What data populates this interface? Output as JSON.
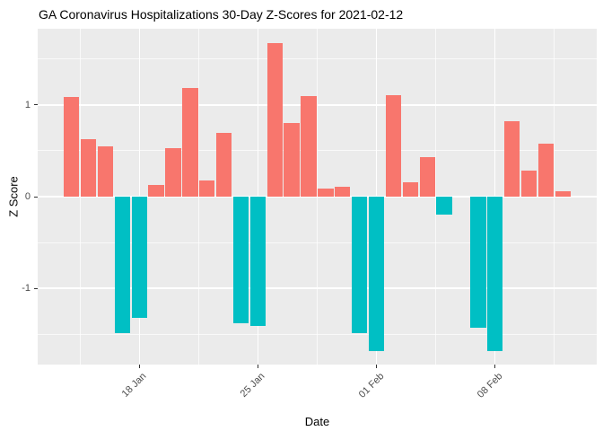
{
  "title": "GA Coronavirus Hospitalizations 30-Day Z-Scores for 2021-02-12",
  "colors": {
    "positive_bar": "#F8766D",
    "negative_bar": "#00BFC4",
    "panel_background": "#EBEBEB",
    "gridline": "#FFFFFF",
    "tick_text": "#4D4D4D",
    "tick_mark": "#333333",
    "title_text": "#000000"
  },
  "chart_data": {
    "type": "bar",
    "title": "GA Coronavirus Hospitalizations 30-Day Z-Scores for 2021-02-12",
    "xlabel": "Date",
    "ylabel": "Z Score",
    "legend": false,
    "grid": true,
    "background": "gray-panel-white-grid",
    "x": [
      "2021-01-14",
      "2021-01-15",
      "2021-01-16",
      "2021-01-17",
      "2021-01-18",
      "2021-01-19",
      "2021-01-20",
      "2021-01-21",
      "2021-01-22",
      "2021-01-23",
      "2021-01-24",
      "2021-01-25",
      "2021-01-26",
      "2021-01-27",
      "2021-01-28",
      "2021-01-29",
      "2021-01-30",
      "2021-01-31",
      "2021-02-01",
      "2021-02-02",
      "2021-02-03",
      "2021-02-04",
      "2021-02-05",
      "2021-02-06",
      "2021-02-07",
      "2021-02-08",
      "2021-02-09",
      "2021-02-10",
      "2021-02-11",
      "2021-02-12"
    ],
    "values": [
      1.09,
      0.63,
      0.55,
      -1.49,
      -1.32,
      0.13,
      0.53,
      1.18,
      0.18,
      0.69,
      -1.38,
      -1.41,
      1.67,
      0.8,
      1.1,
      0.09,
      0.11,
      -1.49,
      -1.68,
      1.11,
      0.16,
      0.43,
      -0.2,
      0.0,
      -1.43,
      -1.68,
      0.82,
      0.28,
      0.58,
      0.06
    ],
    "color_rule": "positive values salmon #F8766D, negative values teal #00BFC4",
    "x_ticks": [
      {
        "index": 4,
        "label": "18 Jan"
      },
      {
        "index": 11,
        "label": "25 Jan"
      },
      {
        "index": 18,
        "label": "01 Feb"
      },
      {
        "index": 25,
        "label": "08 Feb"
      }
    ],
    "x_minor_day_offsets": [
      0.5,
      7.5,
      14.5,
      21.5,
      28.5
    ],
    "y_ticks": [
      {
        "value": -1,
        "label": "-1"
      },
      {
        "value": 0,
        "label": "0"
      },
      {
        "value": 1,
        "label": "1"
      }
    ],
    "y_minor_ticks": [
      -1.5,
      -0.5,
      0.5,
      1.5
    ],
    "ylim": [
      -1.83,
      1.83
    ],
    "xlim_days": [
      -2.0,
      31.0
    ]
  }
}
